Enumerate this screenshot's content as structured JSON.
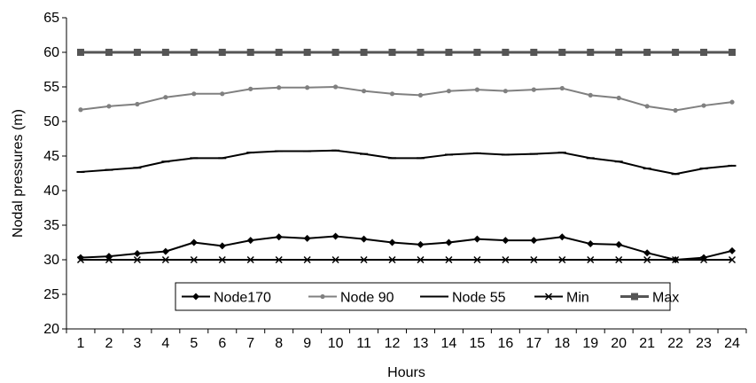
{
  "chart_data": {
    "type": "line",
    "xlabel": "Hours",
    "ylabel": "Nodal pressures (m)",
    "ylim": [
      20,
      65
    ],
    "yticks": [
      20,
      25,
      30,
      35,
      40,
      45,
      50,
      55,
      60,
      65
    ],
    "x": [
      1,
      2,
      3,
      4,
      5,
      6,
      7,
      8,
      9,
      10,
      11,
      12,
      13,
      14,
      15,
      16,
      17,
      18,
      19,
      20,
      21,
      22,
      23,
      24
    ],
    "grid": false,
    "legend_position": "inside-bottom",
    "series": [
      {
        "name": "Node170",
        "color": "#000000",
        "marker": "diamond",
        "values": [
          30.3,
          30.5,
          30.9,
          31.2,
          32.5,
          32.0,
          32.8,
          33.3,
          33.1,
          33.4,
          33.0,
          32.5,
          32.2,
          32.5,
          33.0,
          32.8,
          32.8,
          33.3,
          32.3,
          32.2,
          31.0,
          30.0,
          30.3,
          31.3
        ]
      },
      {
        "name": "Node 90",
        "color": "#808080",
        "marker": "dot",
        "values": [
          51.7,
          52.2,
          52.5,
          53.5,
          54.0,
          54.0,
          54.7,
          54.9,
          54.9,
          55.0,
          54.4,
          54.0,
          53.8,
          54.4,
          54.6,
          54.4,
          54.6,
          54.8,
          53.8,
          53.4,
          52.2,
          51.6,
          52.3,
          52.8
        ]
      },
      {
        "name": "Node 55",
        "color": "#000000",
        "marker": "dash",
        "values": [
          42.7,
          43.0,
          43.3,
          44.2,
          44.7,
          44.7,
          45.5,
          45.7,
          45.7,
          45.8,
          45.3,
          44.7,
          44.7,
          45.2,
          45.4,
          45.2,
          45.3,
          45.5,
          44.7,
          44.2,
          43.2,
          42.4,
          43.2,
          43.6
        ]
      },
      {
        "name": "Min",
        "color": "#000000",
        "marker": "x",
        "values": [
          30,
          30,
          30,
          30,
          30,
          30,
          30,
          30,
          30,
          30,
          30,
          30,
          30,
          30,
          30,
          30,
          30,
          30,
          30,
          30,
          30,
          30,
          30,
          30
        ]
      },
      {
        "name": "Max",
        "color": "#555555",
        "marker": "square",
        "values": [
          60,
          60,
          60,
          60,
          60,
          60,
          60,
          60,
          60,
          60,
          60,
          60,
          60,
          60,
          60,
          60,
          60,
          60,
          60,
          60,
          60,
          60,
          60,
          60
        ]
      }
    ]
  }
}
